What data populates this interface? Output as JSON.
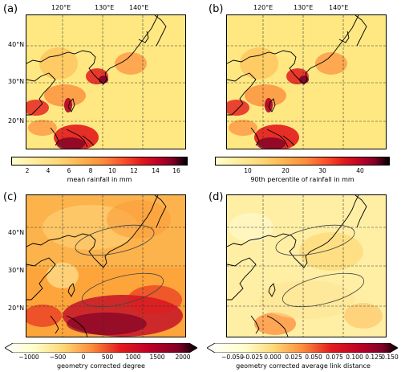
{
  "panels": [
    {
      "label": "(a)",
      "top_ticks": [
        "120°E",
        "130°E",
        "140°E"
      ],
      "left_ticks": [
        "40°N",
        "30°N",
        "20°N"
      ],
      "colorbar": {
        "ticks": [
          "2",
          "4",
          "6",
          "8",
          "10",
          "12",
          "14",
          "16"
        ],
        "label": "mean rainfall in mm",
        "extend": "none",
        "colormap": "YlOrRd-to-black"
      },
      "contours": []
    },
    {
      "label": "(b)",
      "top_ticks": [
        "120°E",
        "130°E",
        "140°E"
      ],
      "left_ticks": [],
      "colorbar": {
        "ticks": [
          "10",
          "20",
          "30",
          "40"
        ],
        "label": "90th percentile of rainfall in mm",
        "extend": "none",
        "colormap": "YlOrRd-to-black"
      },
      "contours": []
    },
    {
      "label": "(c)",
      "top_ticks": [],
      "left_ticks": [
        "40°N",
        "30°N",
        "20°N"
      ],
      "colorbar": {
        "ticks": [
          "−1000",
          "−500",
          "0",
          "500",
          "1000",
          "1500",
          "2000"
        ],
        "label": "geometry corrected degree",
        "extend": "both",
        "colormap": "white-to-black"
      },
      "contours": [
        "northern-ellipse",
        "southern-ellipse"
      ]
    },
    {
      "label": "(d)",
      "top_ticks": [],
      "left_ticks": [],
      "colorbar": {
        "ticks": [
          "−0.050",
          "−0.025",
          "0.000",
          "0.025",
          "0.050",
          "0.075",
          "0.100",
          "0.125",
          "0.150"
        ],
        "label": "geometry corrected average link distance",
        "extend": "both",
        "colormap": "white-to-black"
      },
      "contours": [
        "northern-ellipse",
        "southern-ellipse"
      ]
    }
  ],
  "colors": {
    "cmap_low": "#ffffcc",
    "cmap_mid1": "#fed976",
    "cmap_mid2": "#fd8d3c",
    "cmap_mid3": "#e31a1c",
    "cmap_high": "#800026",
    "cmap_top": "#000000",
    "map_base_rain": "#ffe066",
    "map_base_network": "#fda53a",
    "coastline": "#000000"
  }
}
